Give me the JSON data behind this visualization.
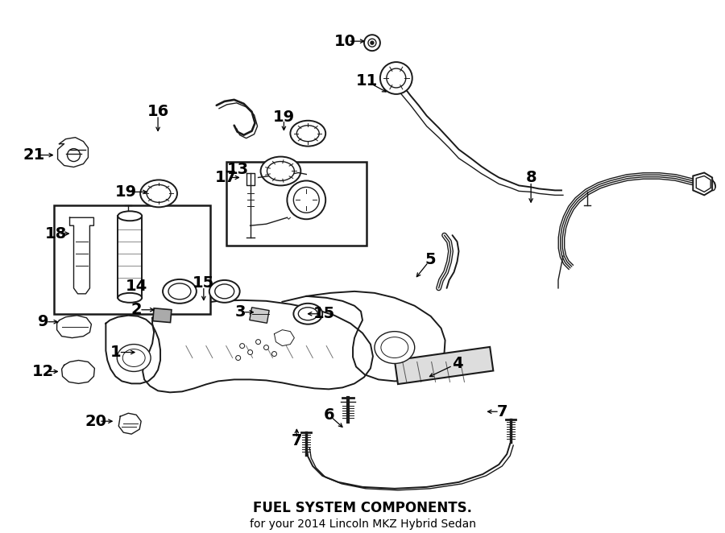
{
  "title": "FUEL SYSTEM COMPONENTS.",
  "subtitle": "for your 2014 Lincoln MKZ Hybrid Sedan",
  "title_fontsize": 12,
  "subtitle_fontsize": 10,
  "bg_color": "#ffffff",
  "line_color": "#1a1a1a",
  "label_fontsize": 14,
  "fig_width": 9.0,
  "fig_height": 6.62,
  "dpi": 100
}
